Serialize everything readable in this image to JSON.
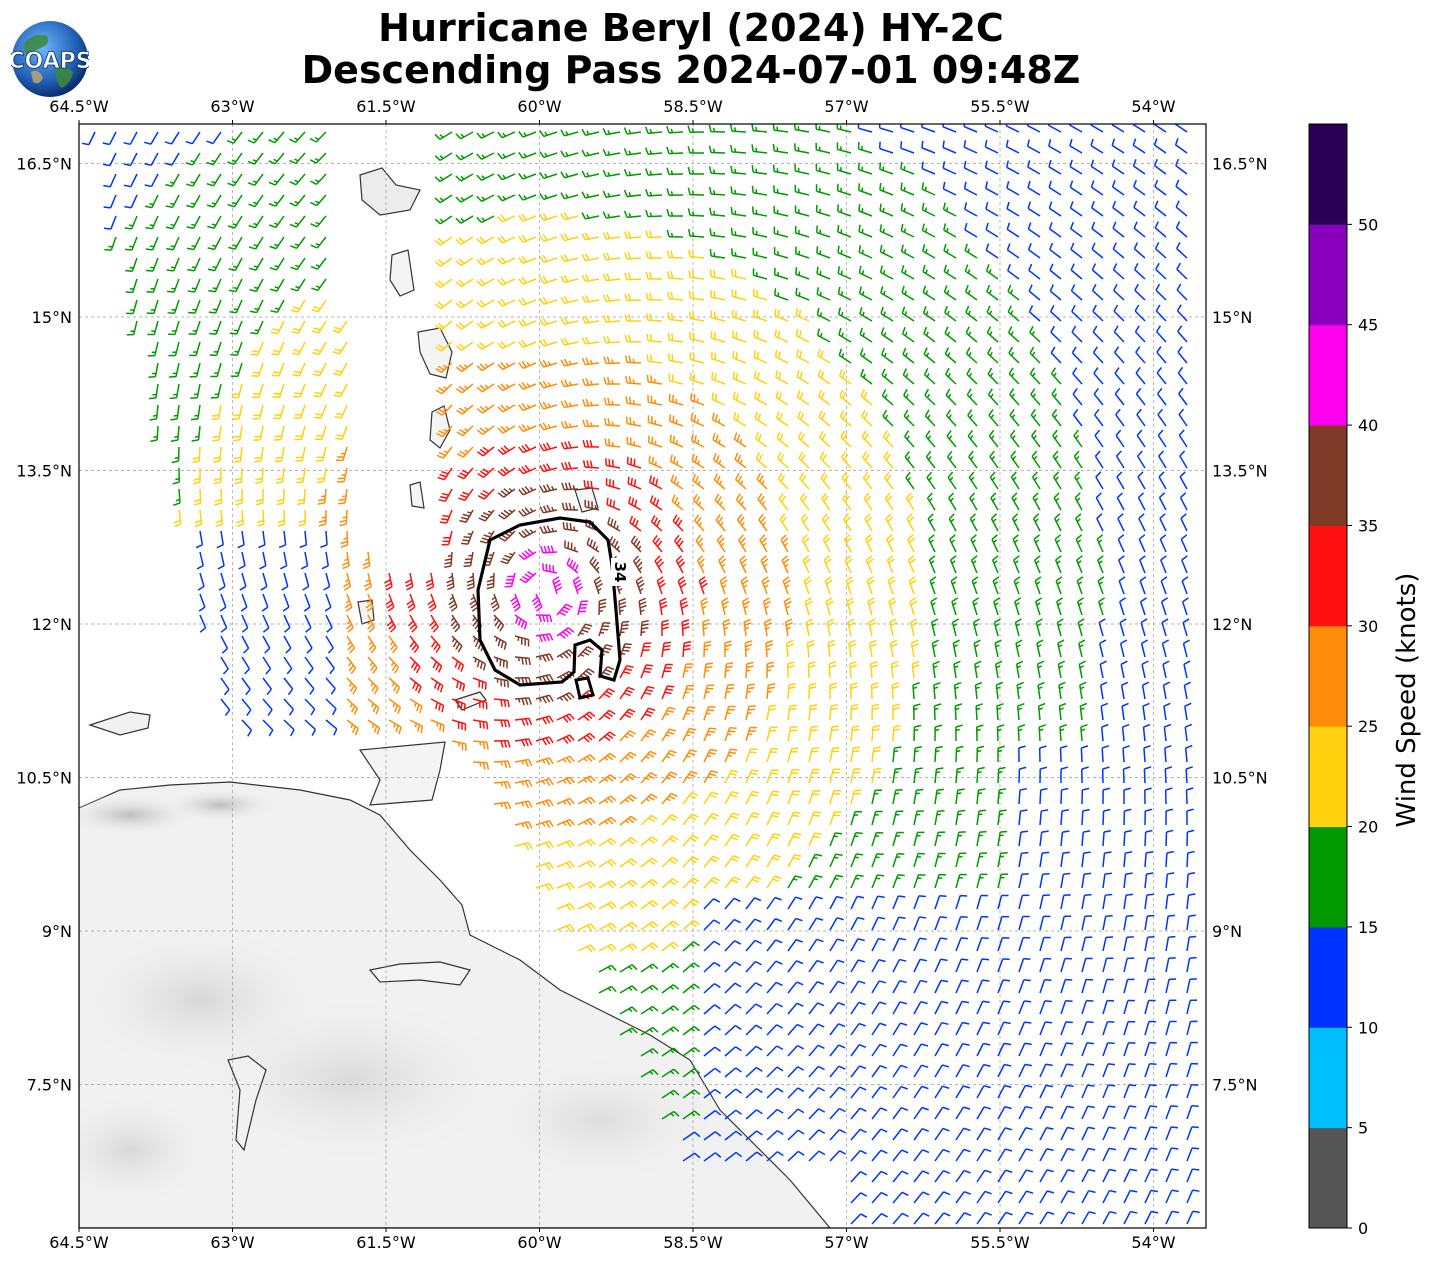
{
  "title_line1": "Hurricane Beryl (2024) HY-2C",
  "title_line2": "Descending Pass 2024-07-01 09:48Z",
  "logo_text": "COAPS",
  "map": {
    "lon_labels": [
      "64.5°W",
      "63°W",
      "61.5°W",
      "60°W",
      "58.5°W",
      "57°W",
      "55.5°W",
      "54°W"
    ],
    "lat_labels": [
      "16.5°N",
      "15°N",
      "13.5°N",
      "12°N",
      "10.5°N",
      "9°N",
      "7.5°N"
    ],
    "contour_label": "34",
    "storm_center": {
      "lon": -59.95,
      "lat": 12.3
    }
  },
  "colorbar": {
    "label": "Wind Speed (knots)",
    "bins": [
      {
        "min": 0,
        "max": 5,
        "color": "#555555"
      },
      {
        "min": 5,
        "max": 10,
        "color": "#00bfff"
      },
      {
        "min": 10,
        "max": 15,
        "color": "#0033ff"
      },
      {
        "min": 15,
        "max": 20,
        "color": "#009900"
      },
      {
        "min": 20,
        "max": 25,
        "color": "#ffd10f"
      },
      {
        "min": 25,
        "max": 30,
        "color": "#ff8c0a"
      },
      {
        "min": 30,
        "max": 35,
        "color": "#ff1010"
      },
      {
        "min": 35,
        "max": 40,
        "color": "#7f3a28"
      },
      {
        "min": 40,
        "max": 45,
        "color": "#ff00ee"
      },
      {
        "min": 45,
        "max": 50,
        "color": "#8800bb"
      },
      {
        "min": 50,
        "max": 55,
        "color": "#2a0055"
      }
    ],
    "tick_labels": [
      "0",
      "5",
      "10",
      "15",
      "20",
      "25",
      "30",
      "35",
      "40",
      "45",
      "50"
    ]
  }
}
